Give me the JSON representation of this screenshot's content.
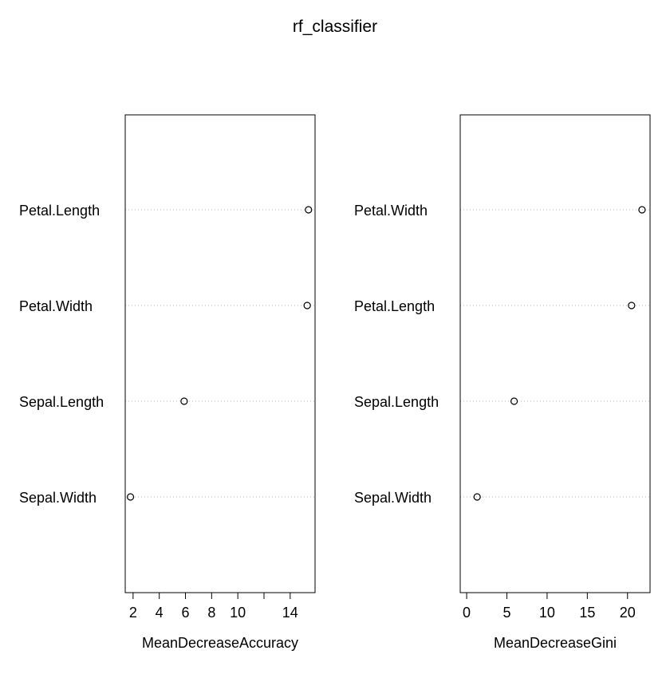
{
  "title": "rf_classifier",
  "chart_data": [
    {
      "type": "scatter",
      "title": "",
      "xlabel": "MeanDecreaseAccuracy",
      "ylabel": "",
      "categories": [
        "Petal.Length",
        "Petal.Width",
        "Sepal.Length",
        "Sepal.Width"
      ],
      "values": [
        15.4,
        15.3,
        5.9,
        1.8
      ],
      "xticks": [
        2,
        4,
        6,
        8,
        10,
        14
      ],
      "xlim": [
        1.4,
        15.9
      ],
      "grid": "dotted horizontal",
      "marker": "open circle"
    },
    {
      "type": "scatter",
      "title": "",
      "xlabel": "MeanDecreaseGini",
      "ylabel": "",
      "categories": [
        "Petal.Width",
        "Petal.Length",
        "Sepal.Length",
        "Sepal.Width"
      ],
      "values": [
        21.8,
        20.5,
        5.9,
        1.3
      ],
      "xticks": [
        0,
        5,
        10,
        15,
        20
      ],
      "xlim": [
        -0.8,
        22.8
      ],
      "grid": "dotted horizontal",
      "marker": "open circle"
    }
  ]
}
